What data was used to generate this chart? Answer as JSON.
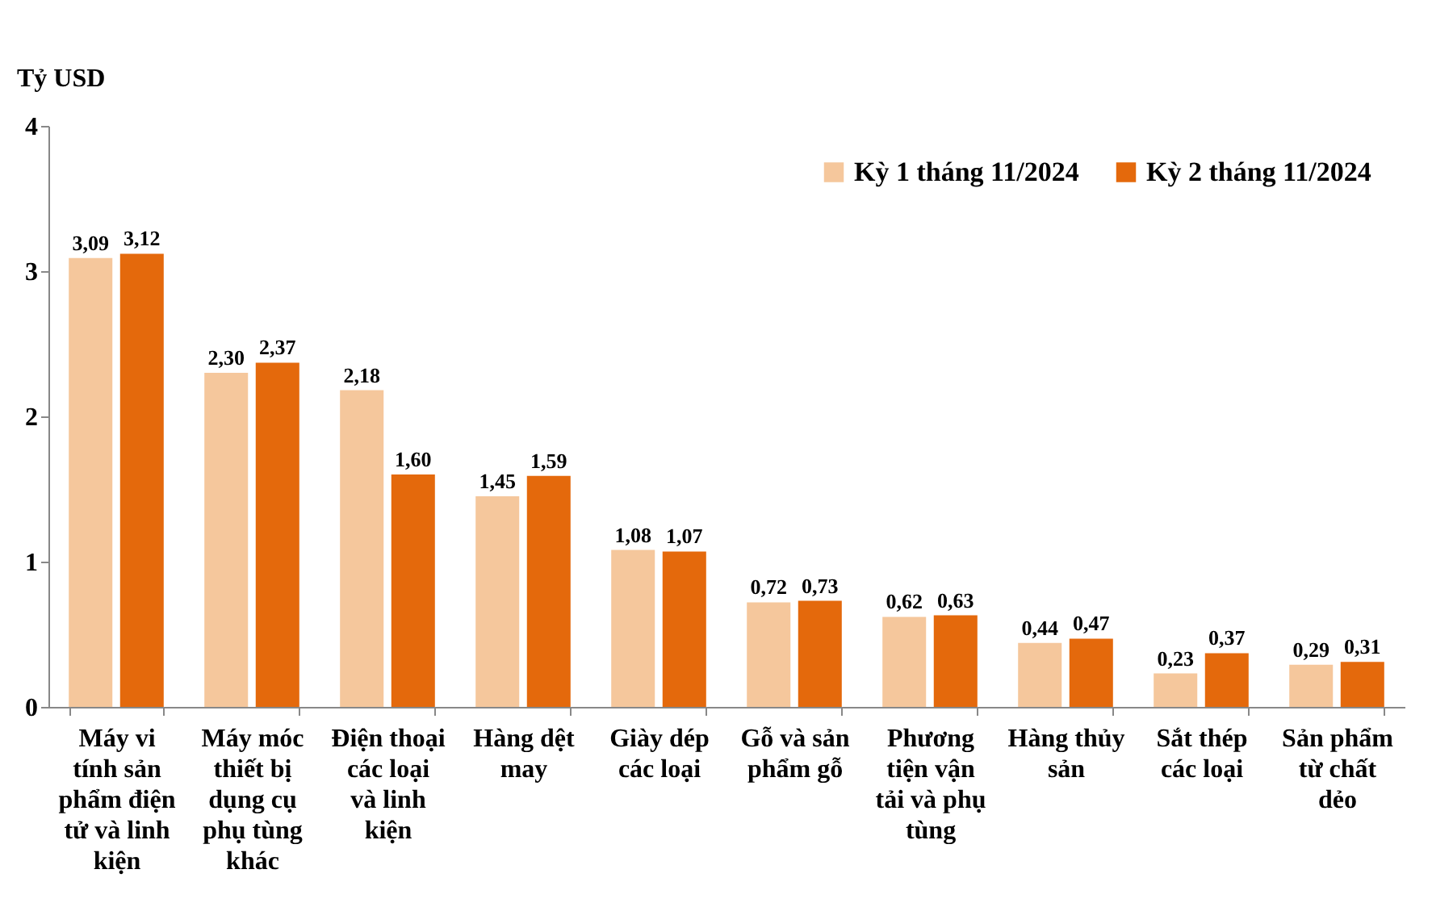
{
  "chart_data": {
    "type": "bar",
    "ylabel": "Tỷ USD",
    "categories": [
      "Máy vi tính sản phẩm điện tử và linh kiện",
      "Máy móc thiết bị dụng cụ phụ tùng khác",
      "Điện thoại các loại và linh kiện",
      "Hàng dệt may",
      "Giày dép các loại",
      "Gỗ và sản phẩm gỗ",
      "Phương tiện vận tải và phụ tùng",
      "Hàng thủy sản",
      "Sắt thép các loại",
      "Sản phẩm từ chất dẻo"
    ],
    "series": [
      {
        "name": "Kỳ 1 tháng 11/2024",
        "color": "#f5c79c",
        "values": [
          3.09,
          2.3,
          2.18,
          1.45,
          1.08,
          0.72,
          0.62,
          0.44,
          0.23,
          0.29
        ],
        "value_labels": [
          "3,09",
          "2,30",
          "2,18",
          "1,45",
          "1,08",
          "0,72",
          "0,62",
          "0,44",
          "0,23",
          "0,29"
        ]
      },
      {
        "name": "Kỳ 2 tháng 11/2024",
        "color": "#e4690c",
        "values": [
          3.12,
          2.37,
          1.6,
          1.59,
          1.07,
          0.73,
          0.63,
          0.47,
          0.37,
          0.31
        ],
        "value_labels": [
          "3,12",
          "2,37",
          "1,60",
          "1,59",
          "1,07",
          "0,73",
          "0,63",
          "0,47",
          "0,37",
          "0,31"
        ]
      }
    ],
    "ylim": [
      0,
      4
    ],
    "yticks": [
      0,
      1,
      2,
      3,
      4
    ],
    "grid": false,
    "legend": "top right"
  }
}
